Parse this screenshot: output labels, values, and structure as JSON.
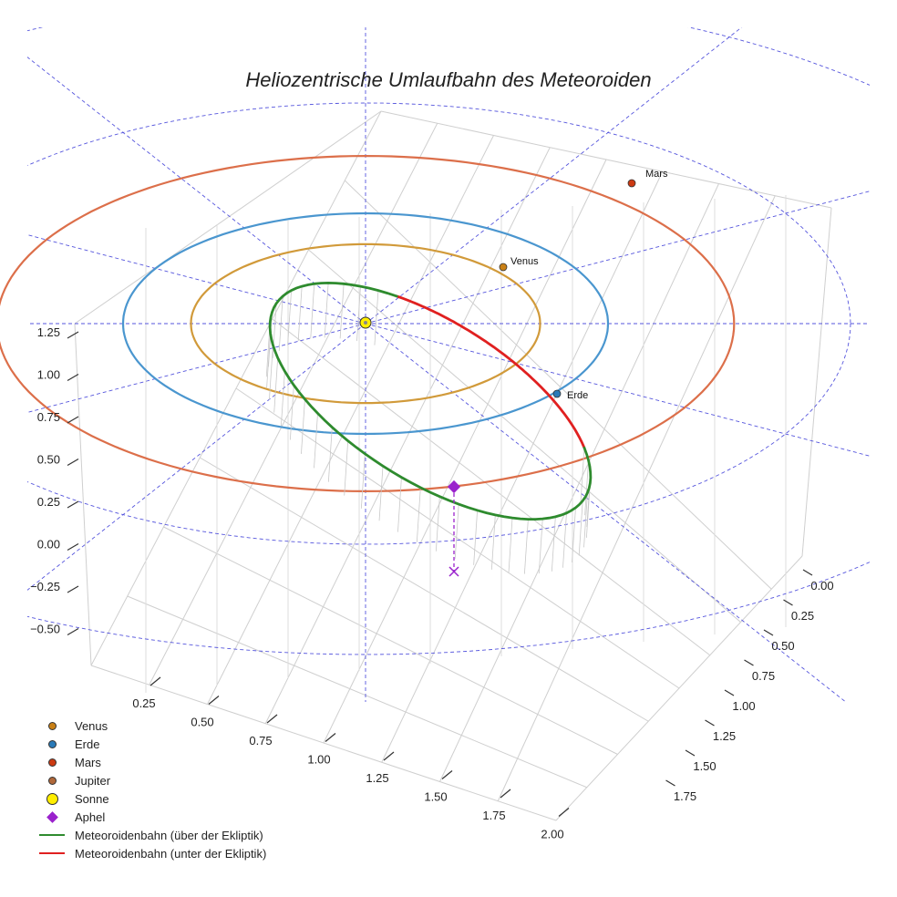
{
  "chart_data": {
    "type": "line",
    "title": "Heliozentrische Umlaufbahn des Meteoroiden",
    "axes": {
      "x_ticks": [
        "0.25",
        "0.50",
        "0.75",
        "1.00",
        "1.25",
        "1.50",
        "1.75",
        "2.00"
      ],
      "y_ticks": [
        "0.00",
        "0.25",
        "0.50",
        "0.75",
        "1.00",
        "1.25",
        "1.50",
        "1.75"
      ],
      "z_ticks": [
        "1.25",
        "1.00",
        "0.75",
        "0.50",
        "0.25",
        "0.00",
        "−0.25",
        "−0.50"
      ]
    },
    "grid": true,
    "legend_position": "bottom-left",
    "planets": [
      {
        "name": "Venus",
        "orbit_radius_au": 0.72,
        "color": "#d19a3a",
        "dot_color": "#c98016"
      },
      {
        "name": "Erde",
        "orbit_radius_au": 1.0,
        "color": "#4a96cf",
        "dot_color": "#2a7ab8"
      },
      {
        "name": "Mars",
        "orbit_radius_au": 1.52,
        "color": "#dc6f4a",
        "dot_color": "#cc3a12"
      }
    ],
    "legend": [
      {
        "label": "Venus",
        "symbol": "dot",
        "color": "#c98016"
      },
      {
        "label": "Erde",
        "symbol": "dot",
        "color": "#2a7ab8"
      },
      {
        "label": "Mars",
        "symbol": "dot",
        "color": "#cc3a12"
      },
      {
        "label": "Jupiter",
        "symbol": "dot",
        "color": "#b0683a"
      },
      {
        "label": "Sonne",
        "symbol": "bigdot",
        "color": "#ffee00"
      },
      {
        "label": "Aphel",
        "symbol": "diamond",
        "color": "#9a22cc"
      },
      {
        "label": "Meteoroidenbahn (über der Ekliptik)",
        "symbol": "line",
        "color": "#2e8b2e"
      },
      {
        "label": "Meteoroidenbahn (unter der Ekliptik)",
        "symbol": "line",
        "color": "#e02020"
      }
    ],
    "series": [
      {
        "name": "Meteoroidenbahn (über der Ekliptik)",
        "color": "#2e8b2e"
      },
      {
        "name": "Meteoroidenbahn (unter der Ekliptik)",
        "color": "#e02020"
      }
    ],
    "colors": {
      "ecliptic_grid": "#5555dd",
      "box_grid": "#cfcfcf",
      "sun": "#ffee00",
      "aphel": "#9a22cc"
    }
  }
}
